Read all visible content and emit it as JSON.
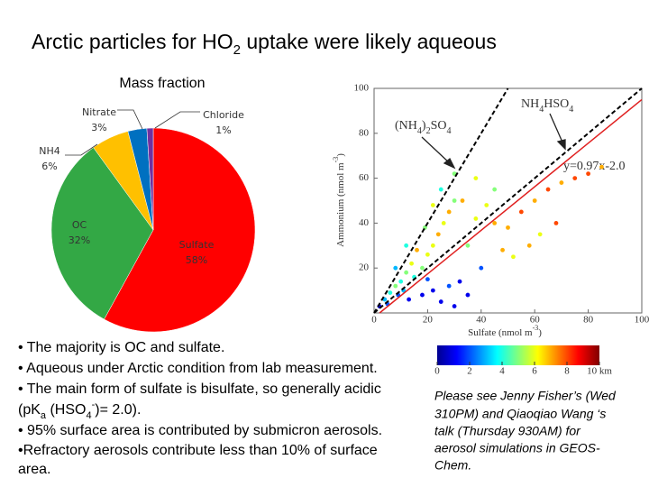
{
  "title": [
    "Arctic particles for HO",
    "2",
    " uptake were likely aqueous"
  ],
  "bullets": [
    "• The majority is OC and sulfate.",
    "• Aqueous under Arctic condition from lab measurement.",
    "• The main form of sulfate is bisulfate, so generally acidic",
    [
      "(pK",
      "a",
      " (HSO",
      "4",
      "-",
      ")= 2.0)."
    ],
    "• 95% surface area is contributed by submicron aerosols.",
    "•Refractory aerosols contribute less than 10% of surface",
    "area."
  ],
  "note": [
    "Please see Jenny Fisher’s (Wed",
    "310PM) and Qiaoqiao Wang ‘s",
    "talk (Thursday 930AM) for",
    "aerosol simulations in GEOS-",
    "Chem."
  ],
  "chart_data": [
    {
      "type": "pie",
      "title": "Mass fraction",
      "categories": [
        "Sulfate",
        "OC",
        "NH4",
        "Nitrate",
        "Chloride"
      ],
      "values": [
        58,
        32,
        6,
        3,
        1
      ],
      "value_labels": [
        "58%",
        "32%",
        "6%",
        "3%",
        "1%"
      ],
      "colors": [
        "#ff0000",
        "#33a845",
        "#ffc000",
        "#0070c0",
        "#7030a0"
      ]
    },
    {
      "type": "scatter",
      "xlabel": [
        "Sulfate (nmol m",
        "-3",
        ")"
      ],
      "ylabel": [
        "Ammonium (nmol m",
        "-3",
        ")"
      ],
      "xlim": [
        0,
        100
      ],
      "ylim": [
        0,
        100
      ],
      "xticks": [
        0,
        20,
        40,
        60,
        80,
        100
      ],
      "yticks": [
        20,
        40,
        60,
        80,
        100
      ],
      "x": [
        2,
        4,
        5,
        6,
        8,
        10,
        12,
        14,
        9,
        11,
        15,
        18,
        20,
        22,
        16,
        24,
        26,
        28,
        30,
        25,
        30,
        22,
        19,
        12,
        8,
        13,
        18,
        22,
        25,
        28,
        32,
        20,
        35,
        38,
        42,
        45,
        50,
        55,
        60,
        65,
        70,
        75,
        58,
        62,
        68,
        80,
        85,
        52,
        48,
        40,
        35,
        30,
        45,
        38,
        33
      ],
      "y": [
        3,
        6,
        4,
        9,
        12,
        14,
        18,
        22,
        8,
        10,
        16,
        20,
        26,
        30,
        28,
        35,
        40,
        45,
        50,
        55,
        62,
        48,
        38,
        30,
        20,
        6,
        8,
        10,
        5,
        12,
        14,
        15,
        30,
        42,
        48,
        40,
        38,
        45,
        50,
        55,
        58,
        60,
        30,
        35,
        40,
        62,
        65,
        25,
        28,
        20,
        8,
        3,
        55,
        60,
        50
      ],
      "z": [
        1,
        3,
        2,
        4,
        5,
        4,
        5,
        6,
        2,
        3,
        4,
        5,
        6,
        6,
        7,
        7,
        6,
        7,
        5,
        4,
        5,
        6,
        5,
        4,
        3,
        1,
        1,
        1,
        1,
        2,
        1,
        2,
        5,
        6,
        6,
        7,
        7,
        8,
        7,
        8,
        7,
        8,
        7,
        6,
        8,
        8,
        7,
        6,
        7,
        2,
        1,
        1,
        5,
        6,
        7
      ],
      "ref_lines": [
        {
          "label": [
            "(NH",
            "4",
            ")",
            "2",
            "SO",
            "4"
          ],
          "slope": 2,
          "intercept": 0
        },
        {
          "label": [
            "NH",
            "4",
            "HSO",
            "4"
          ],
          "slope": 1,
          "intercept": 0
        }
      ],
      "fit": {
        "label": "y=0.97x-2.0",
        "slope": 0.97,
        "intercept": -2.0,
        "color": "#e02020"
      },
      "colorbar": {
        "lim": [
          0,
          10
        ],
        "ticks": [
          0,
          2,
          4,
          6,
          8,
          {
            "value": 10,
            "label": "10 km"
          }
        ]
      }
    }
  ]
}
